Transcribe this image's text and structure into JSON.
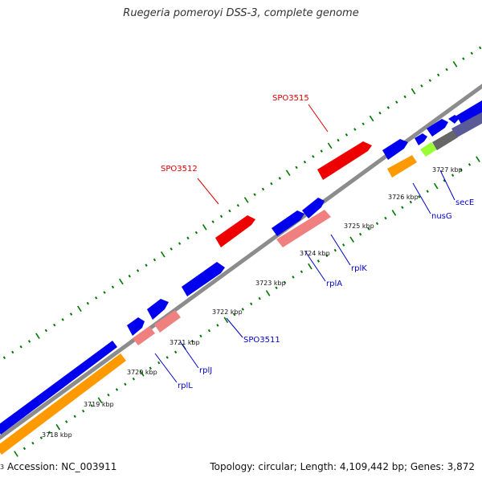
{
  "title": "Ruegeria pomeroyi DSS-3, complete genome",
  "footer": {
    "edge_digit": "3",
    "accession": "Accession: NC_003911",
    "summary": "Topology: circular; Length: 4,109,442 bp; Genes: 3,872"
  },
  "colors": {
    "backbone": "#8c8c8c",
    "cds": "#0000ee",
    "rrna_like": "#f08080",
    "highlight": "#ee0000",
    "orange": "#ff9900",
    "lime": "#99ff33",
    "darkgray": "#666666",
    "slate": "#5a5a99",
    "tick": "#007700",
    "label_blue": "#0000cc",
    "label_red": "#dd0000"
  },
  "ticks": [
    {
      "label": "3718 kbp"
    },
    {
      "label": "3719 kbp"
    },
    {
      "label": "3720 kbp"
    },
    {
      "label": "3721 kbp"
    },
    {
      "label": "3722 kbp"
    },
    {
      "label": "3723 kbp"
    },
    {
      "label": "3724 kbp"
    },
    {
      "label": "3725 kbp"
    },
    {
      "label": "3726 kbp"
    },
    {
      "label": "3727 kbp"
    }
  ],
  "gene_labels": [
    {
      "name": "SPO3515",
      "color": "label_red"
    },
    {
      "name": "SPO3512",
      "color": "label_red"
    },
    {
      "name": "SPO3511",
      "color": "label_blue"
    },
    {
      "name": "rplK",
      "color": "label_blue"
    },
    {
      "name": "rplA",
      "color": "label_blue"
    },
    {
      "name": "rplJ",
      "color": "label_blue"
    },
    {
      "name": "rplL",
      "color": "label_blue"
    },
    {
      "name": "nusG",
      "color": "label_blue"
    },
    {
      "name": "secE",
      "color": "label_blue"
    }
  ]
}
